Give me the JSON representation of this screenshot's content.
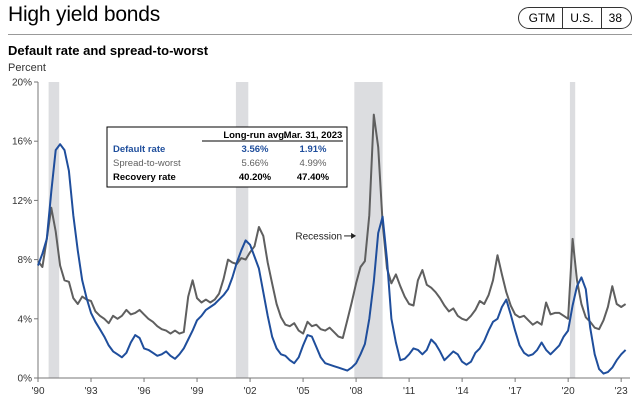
{
  "header": {
    "title": "High yield bonds",
    "badges": [
      "GTM",
      "U.S.",
      "38"
    ]
  },
  "chart_data": {
    "type": "line",
    "title": "Default rate and spread-to-worst",
    "ylabel": "Percent",
    "xlabel": "",
    "xlim": [
      1990,
      2023.5
    ],
    "ylim": [
      0,
      20
    ],
    "yticks": [
      0,
      4,
      8,
      12,
      16,
      20
    ],
    "ytick_labels": [
      "0%",
      "4%",
      "8%",
      "12%",
      "16%",
      "20%"
    ],
    "xticks": [
      1990,
      1993,
      1996,
      1999,
      2002,
      2005,
      2008,
      2011,
      2014,
      2017,
      2020,
      2023
    ],
    "xtick_labels": [
      "'90",
      "'93",
      "'96",
      "'99",
      "'02",
      "'05",
      "'08",
      "'11",
      "'14",
      "'17",
      "'20",
      "'23"
    ],
    "grid": false,
    "recessions": [
      [
        1990.6,
        1991.2
      ],
      [
        2001.2,
        2001.9
      ],
      [
        2007.9,
        2009.5
      ],
      [
        2020.1,
        2020.4
      ]
    ],
    "annotation": "Recession",
    "series": [
      {
        "name": "Default rate",
        "color": "#1f4e9c",
        "points": [
          [
            1990,
            7.6
          ],
          [
            1990.25,
            8.4
          ],
          [
            1990.5,
            9.4
          ],
          [
            1990.75,
            12.6
          ],
          [
            1991,
            15.4
          ],
          [
            1991.25,
            15.8
          ],
          [
            1991.5,
            15.4
          ],
          [
            1991.75,
            14.0
          ],
          [
            1992,
            11.0
          ],
          [
            1992.25,
            8.6
          ],
          [
            1992.5,
            6.6
          ],
          [
            1992.75,
            5.4
          ],
          [
            1993,
            4.4
          ],
          [
            1993.25,
            3.8
          ],
          [
            1993.5,
            3.3
          ],
          [
            1993.75,
            2.8
          ],
          [
            1994,
            2.2
          ],
          [
            1994.25,
            1.8
          ],
          [
            1994.5,
            1.6
          ],
          [
            1994.75,
            1.4
          ],
          [
            1995,
            1.7
          ],
          [
            1995.25,
            2.4
          ],
          [
            1995.5,
            2.9
          ],
          [
            1995.75,
            2.7
          ],
          [
            1996,
            2.0
          ],
          [
            1996.25,
            1.9
          ],
          [
            1996.5,
            1.7
          ],
          [
            1996.75,
            1.5
          ],
          [
            1997,
            1.6
          ],
          [
            1997.25,
            1.8
          ],
          [
            1997.5,
            1.5
          ],
          [
            1997.75,
            1.3
          ],
          [
            1998,
            1.6
          ],
          [
            1998.25,
            2.0
          ],
          [
            1998.5,
            2.6
          ],
          [
            1998.75,
            3.2
          ],
          [
            1999,
            3.9
          ],
          [
            1999.25,
            4.2
          ],
          [
            1999.5,
            4.6
          ],
          [
            1999.75,
            4.8
          ],
          [
            2000,
            5.0
          ],
          [
            2000.25,
            5.3
          ],
          [
            2000.5,
            5.6
          ],
          [
            2000.75,
            6.0
          ],
          [
            2001,
            6.8
          ],
          [
            2001.25,
            7.8
          ],
          [
            2001.5,
            8.6
          ],
          [
            2001.75,
            9.3
          ],
          [
            2002,
            9.0
          ],
          [
            2002.25,
            8.2
          ],
          [
            2002.5,
            7.4
          ],
          [
            2002.75,
            5.8
          ],
          [
            2003,
            4.2
          ],
          [
            2003.25,
            2.8
          ],
          [
            2003.5,
            2.0
          ],
          [
            2003.75,
            1.6
          ],
          [
            2004,
            1.5
          ],
          [
            2004.25,
            1.2
          ],
          [
            2004.5,
            1.0
          ],
          [
            2004.75,
            1.4
          ],
          [
            2005,
            2.2
          ],
          [
            2005.25,
            2.9
          ],
          [
            2005.5,
            2.8
          ],
          [
            2005.75,
            2.1
          ],
          [
            2006,
            1.4
          ],
          [
            2006.25,
            1.0
          ],
          [
            2006.5,
            0.9
          ],
          [
            2006.75,
            0.8
          ],
          [
            2007,
            0.7
          ],
          [
            2007.25,
            0.6
          ],
          [
            2007.5,
            0.5
          ],
          [
            2007.75,
            0.7
          ],
          [
            2008,
            1.0
          ],
          [
            2008.25,
            1.6
          ],
          [
            2008.5,
            2.3
          ],
          [
            2008.75,
            4.0
          ],
          [
            2009,
            6.5
          ],
          [
            2009.25,
            9.8
          ],
          [
            2009.5,
            10.9
          ],
          [
            2009.75,
            8.0
          ],
          [
            2010,
            4.0
          ],
          [
            2010.25,
            2.4
          ],
          [
            2010.5,
            1.2
          ],
          [
            2010.75,
            1.3
          ],
          [
            2011,
            1.6
          ],
          [
            2011.25,
            2.0
          ],
          [
            2011.5,
            1.9
          ],
          [
            2011.75,
            1.6
          ],
          [
            2012,
            1.9
          ],
          [
            2012.25,
            2.6
          ],
          [
            2012.5,
            2.3
          ],
          [
            2012.75,
            1.8
          ],
          [
            2013,
            1.2
          ],
          [
            2013.25,
            1.5
          ],
          [
            2013.5,
            1.8
          ],
          [
            2013.75,
            1.6
          ],
          [
            2014,
            1.1
          ],
          [
            2014.25,
            0.9
          ],
          [
            2014.5,
            1.1
          ],
          [
            2014.75,
            1.7
          ],
          [
            2015,
            2.0
          ],
          [
            2015.25,
            2.5
          ],
          [
            2015.5,
            3.2
          ],
          [
            2015.75,
            3.8
          ],
          [
            2016,
            4.0
          ],
          [
            2016.25,
            4.8
          ],
          [
            2016.5,
            5.3
          ],
          [
            2016.75,
            4.3
          ],
          [
            2017,
            3.2
          ],
          [
            2017.25,
            2.2
          ],
          [
            2017.5,
            1.7
          ],
          [
            2017.75,
            1.5
          ],
          [
            2018,
            1.6
          ],
          [
            2018.25,
            1.9
          ],
          [
            2018.5,
            2.4
          ],
          [
            2018.75,
            1.9
          ],
          [
            2019,
            1.6
          ],
          [
            2019.25,
            1.9
          ],
          [
            2019.5,
            2.2
          ],
          [
            2019.75,
            2.8
          ],
          [
            2020,
            3.2
          ],
          [
            2020.25,
            4.9
          ],
          [
            2020.5,
            6.2
          ],
          [
            2020.75,
            6.8
          ],
          [
            2021,
            6.0
          ],
          [
            2021.25,
            3.4
          ],
          [
            2021.5,
            1.6
          ],
          [
            2021.75,
            0.6
          ],
          [
            2022,
            0.3
          ],
          [
            2022.25,
            0.4
          ],
          [
            2022.5,
            0.7
          ],
          [
            2022.75,
            1.2
          ],
          [
            2023,
            1.6
          ],
          [
            2023.25,
            1.9
          ]
        ]
      },
      {
        "name": "Spread-to-worst",
        "color": "#5f5f5f",
        "points": [
          [
            1990,
            7.9
          ],
          [
            1990.25,
            7.5
          ],
          [
            1990.5,
            9.4
          ],
          [
            1990.75,
            11.5
          ],
          [
            1991,
            9.9
          ],
          [
            1991.25,
            7.6
          ],
          [
            1991.5,
            6.6
          ],
          [
            1991.75,
            6.5
          ],
          [
            1992,
            5.4
          ],
          [
            1992.25,
            5.0
          ],
          [
            1992.5,
            5.5
          ],
          [
            1992.75,
            5.3
          ],
          [
            1993,
            5.2
          ],
          [
            1993.25,
            4.5
          ],
          [
            1993.5,
            4.2
          ],
          [
            1993.75,
            4.0
          ],
          [
            1994,
            3.7
          ],
          [
            1994.25,
            4.2
          ],
          [
            1994.5,
            4.0
          ],
          [
            1994.75,
            4.2
          ],
          [
            1995,
            4.6
          ],
          [
            1995.25,
            4.3
          ],
          [
            1995.5,
            4.4
          ],
          [
            1995.75,
            4.6
          ],
          [
            1996,
            4.3
          ],
          [
            1996.25,
            4.0
          ],
          [
            1996.5,
            3.8
          ],
          [
            1996.75,
            3.5
          ],
          [
            1997,
            3.3
          ],
          [
            1997.25,
            3.2
          ],
          [
            1997.5,
            3.0
          ],
          [
            1997.75,
            3.2
          ],
          [
            1998,
            3.0
          ],
          [
            1998.25,
            3.1
          ],
          [
            1998.5,
            5.5
          ],
          [
            1998.75,
            6.6
          ],
          [
            1999,
            5.4
          ],
          [
            1999.25,
            5.1
          ],
          [
            1999.5,
            5.3
          ],
          [
            1999.75,
            5.1
          ],
          [
            2000,
            5.3
          ],
          [
            2000.25,
            5.7
          ],
          [
            2000.5,
            6.7
          ],
          [
            2000.75,
            8.0
          ],
          [
            2001,
            7.8
          ],
          [
            2001.25,
            7.7
          ],
          [
            2001.5,
            8.1
          ],
          [
            2001.75,
            8.0
          ],
          [
            2002,
            8.5
          ],
          [
            2002.25,
            8.9
          ],
          [
            2002.5,
            10.2
          ],
          [
            2002.75,
            9.6
          ],
          [
            2003,
            7.8
          ],
          [
            2003.25,
            6.4
          ],
          [
            2003.5,
            5.0
          ],
          [
            2003.75,
            4.1
          ],
          [
            2004,
            3.6
          ],
          [
            2004.25,
            3.5
          ],
          [
            2004.5,
            3.7
          ],
          [
            2004.75,
            3.2
          ],
          [
            2005,
            3.0
          ],
          [
            2005.25,
            3.8
          ],
          [
            2005.5,
            3.5
          ],
          [
            2005.75,
            3.6
          ],
          [
            2006,
            3.3
          ],
          [
            2006.25,
            3.2
          ],
          [
            2006.5,
            3.4
          ],
          [
            2006.75,
            3.1
          ],
          [
            2007,
            2.8
          ],
          [
            2007.25,
            2.7
          ],
          [
            2007.5,
            3.9
          ],
          [
            2007.75,
            5.1
          ],
          [
            2008,
            6.4
          ],
          [
            2008.25,
            7.5
          ],
          [
            2008.5,
            7.9
          ],
          [
            2008.75,
            11.0
          ],
          [
            2009,
            17.8
          ],
          [
            2009.25,
            15.6
          ],
          [
            2009.5,
            10.5
          ],
          [
            2009.75,
            7.4
          ],
          [
            2010,
            6.4
          ],
          [
            2010.25,
            7.0
          ],
          [
            2010.5,
            6.2
          ],
          [
            2010.75,
            5.5
          ],
          [
            2011,
            5.0
          ],
          [
            2011.25,
            4.9
          ],
          [
            2011.5,
            6.6
          ],
          [
            2011.75,
            7.3
          ],
          [
            2012,
            6.3
          ],
          [
            2012.25,
            6.1
          ],
          [
            2012.5,
            5.8
          ],
          [
            2012.75,
            5.4
          ],
          [
            2013,
            4.9
          ],
          [
            2013.25,
            4.5
          ],
          [
            2013.5,
            4.7
          ],
          [
            2013.75,
            4.2
          ],
          [
            2014,
            4.0
          ],
          [
            2014.25,
            3.9
          ],
          [
            2014.5,
            4.2
          ],
          [
            2014.75,
            4.6
          ],
          [
            2015,
            5.2
          ],
          [
            2015.25,
            5.0
          ],
          [
            2015.5,
            5.6
          ],
          [
            2015.75,
            6.6
          ],
          [
            2016,
            8.3
          ],
          [
            2016.25,
            7.0
          ],
          [
            2016.5,
            5.8
          ],
          [
            2016.75,
            4.9
          ],
          [
            2017,
            4.3
          ],
          [
            2017.25,
            4.1
          ],
          [
            2017.5,
            4.2
          ],
          [
            2017.75,
            3.9
          ],
          [
            2018,
            3.6
          ],
          [
            2018.25,
            3.8
          ],
          [
            2018.5,
            3.6
          ],
          [
            2018.75,
            5.1
          ],
          [
            2019,
            4.3
          ],
          [
            2019.25,
            4.4
          ],
          [
            2019.5,
            4.4
          ],
          [
            2019.75,
            4.2
          ],
          [
            2020,
            4.0
          ],
          [
            2020.25,
            9.4
          ],
          [
            2020.5,
            6.6
          ],
          [
            2020.75,
            5.0
          ],
          [
            2021,
            4.1
          ],
          [
            2021.25,
            3.8
          ],
          [
            2021.5,
            3.4
          ],
          [
            2021.75,
            3.3
          ],
          [
            2022,
            3.9
          ],
          [
            2022.25,
            4.8
          ],
          [
            2022.5,
            6.2
          ],
          [
            2022.75,
            5.0
          ],
          [
            2023,
            4.8
          ],
          [
            2023.25,
            4.99
          ]
        ]
      }
    ],
    "table": {
      "headers": [
        "",
        "Long-run avg.",
        "Mar. 31, 2023"
      ],
      "rows": [
        {
          "label": "Default rate",
          "values": [
            "3.56%",
            "1.91%"
          ],
          "color": "#1f4e9c"
        },
        {
          "label": "Spread-to-worst",
          "values": [
            "5.66%",
            "4.99%"
          ],
          "color": "#5f5f5f"
        },
        {
          "label": "Recovery rate",
          "values": [
            "40.20%",
            "47.40%"
          ],
          "color": "#000000"
        }
      ]
    }
  }
}
